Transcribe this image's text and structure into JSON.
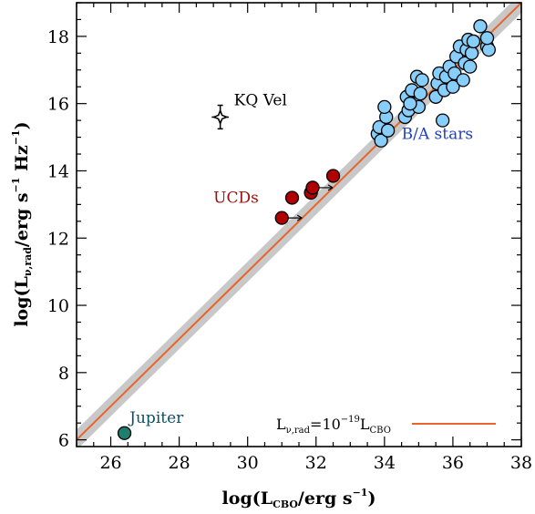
{
  "chart_data": {
    "type": "scatter",
    "xlim": [
      25,
      38
    ],
    "ylim": [
      5.8,
      19
    ],
    "x_ticks": [
      26,
      28,
      30,
      32,
      34,
      36,
      38
    ],
    "y_ticks": [
      6,
      8,
      10,
      12,
      14,
      16,
      18
    ],
    "x_minor_step": 0.5,
    "y_minor_step": 0.5,
    "xlabel_main": "log(L",
    "xlabel_sub": "CBO",
    "xlabel_tail": "/erg s",
    "xlabel_sup": "−1",
    "xlabel_close": ")",
    "ylabel_main": "log(L",
    "ylabel_sub": "ν,rad",
    "ylabel_tail": "/erg s",
    "ylabel_sup1": "−1",
    "ylabel_mid": " Hz",
    "ylabel_sup2": "−1",
    "ylabel_close": ")",
    "relation": {
      "slope": 1,
      "intercept": -19,
      "band_half_width": 0.3
    },
    "legend": {
      "position": "bottom-right",
      "main": "L",
      "sub": "ν,rad",
      "eq": "=10",
      "sup": "−19",
      "tail": "L",
      "sub2": "CBO"
    },
    "series": [
      {
        "name": "B/A stars",
        "color": "#87CEFA",
        "points": [
          [
            33.8,
            15.1
          ],
          [
            33.85,
            15.3
          ],
          [
            33.9,
            14.9
          ],
          [
            34.1,
            15.2
          ],
          [
            34.05,
            15.6
          ],
          [
            34.0,
            15.9
          ],
          [
            34.6,
            15.6
          ],
          [
            34.7,
            15.8
          ],
          [
            34.65,
            16.2
          ],
          [
            34.8,
            16.4
          ],
          [
            34.9,
            16.0
          ],
          [
            34.95,
            16.8
          ],
          [
            35.0,
            15.9
          ],
          [
            35.05,
            16.3
          ],
          [
            35.1,
            16.7
          ],
          [
            35.5,
            16.2
          ],
          [
            35.55,
            16.6
          ],
          [
            35.6,
            16.9
          ],
          [
            35.7,
            15.5
          ],
          [
            35.75,
            16.4
          ],
          [
            35.8,
            16.8
          ],
          [
            35.9,
            17.1
          ],
          [
            36.0,
            16.5
          ],
          [
            36.05,
            16.9
          ],
          [
            36.1,
            17.4
          ],
          [
            36.2,
            17.7
          ],
          [
            36.3,
            16.7
          ],
          [
            36.35,
            17.2
          ],
          [
            36.4,
            17.6
          ],
          [
            36.45,
            17.9
          ],
          [
            36.5,
            17.1
          ],
          [
            36.55,
            17.5
          ],
          [
            36.8,
            18.3
          ],
          [
            37.0,
            17.7
          ],
          [
            37.05,
            17.6
          ],
          [
            37.0,
            17.95
          ],
          [
            36.6,
            17.85
          ],
          [
            34.75,
            16.0
          ]
        ]
      },
      {
        "name": "UCDs",
        "color": "#B00000",
        "points": [
          [
            31.0,
            12.6
          ],
          [
            31.3,
            13.2
          ],
          [
            31.85,
            13.35
          ],
          [
            31.9,
            13.5
          ],
          [
            32.5,
            13.85
          ]
        ],
        "arrows": [
          0,
          3
        ]
      },
      {
        "name": "Jupiter",
        "color": "#1F7F6E",
        "points": [
          [
            26.4,
            6.2
          ]
        ]
      },
      {
        "name": "KQ Vel",
        "color": "#000000",
        "points": [
          [
            29.2,
            15.6
          ]
        ],
        "x_err": 0.25,
        "y_err": 0.35
      }
    ],
    "annotations": [
      {
        "text": "KQ Vel",
        "x": 29.6,
        "y": 15.95,
        "color": "#000000"
      },
      {
        "text": "B/A stars",
        "x": 34.5,
        "y": 14.95,
        "color": "#1f3fbf"
      },
      {
        "text": "UCDs",
        "x": 29.0,
        "y": 13.05,
        "color": "#a01010"
      },
      {
        "text": "Jupiter",
        "x": 26.55,
        "y": 6.5,
        "color": "#0f4f66"
      }
    ],
    "colors": {
      "relation_line": "#E8642A",
      "relation_band": "#C8C8C8"
    },
    "grid": false
  }
}
